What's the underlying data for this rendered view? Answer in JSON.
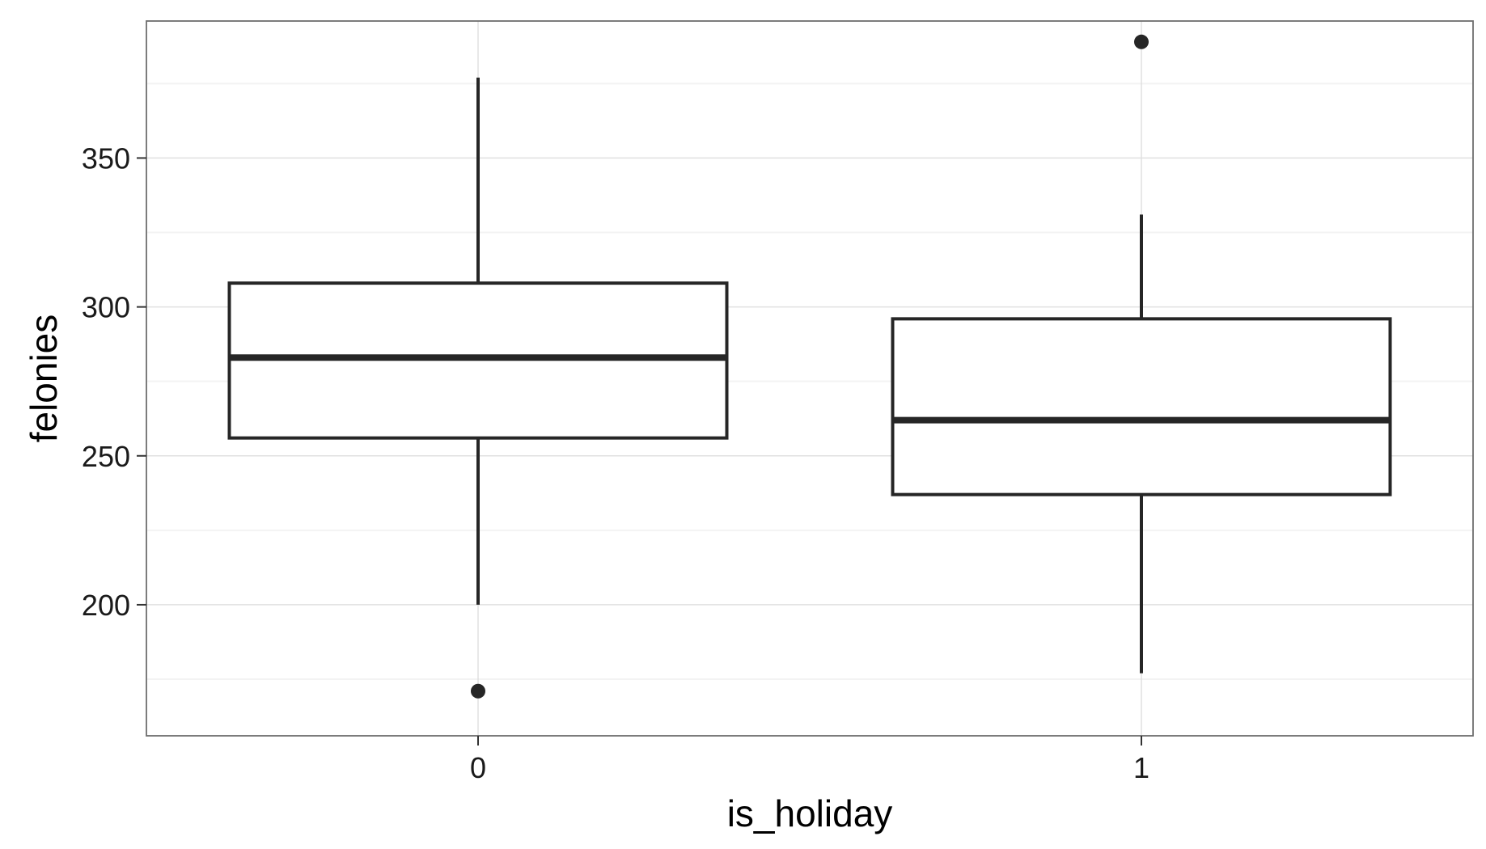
{
  "chart_data": {
    "type": "boxplot",
    "title": "",
    "xlabel": "is_holiday",
    "ylabel": "felonies",
    "categories": [
      "0",
      "1"
    ],
    "ylim": [
      156,
      396
    ],
    "yticks": [
      200,
      250,
      300,
      350
    ],
    "ytick_labels": [
      "200",
      "250",
      "300",
      "350"
    ],
    "grid": true,
    "legend": "none",
    "boxes": [
      {
        "category": "0",
        "whisker_low": 200,
        "q1": 256,
        "median": 283,
        "q3": 308,
        "whisker_high": 377,
        "outliers": [
          171
        ]
      },
      {
        "category": "1",
        "whisker_low": 177,
        "q1": 237,
        "median": 262,
        "q3": 296,
        "whisker_high": 331,
        "outliers": [
          389
        ]
      }
    ],
    "colors": {
      "box_line": "#262626",
      "box_fill": "#ffffff",
      "grid_major": "#e0e0e0",
      "grid_minor": "#f3f3f3",
      "panel_border": "#6e6e6e"
    }
  }
}
